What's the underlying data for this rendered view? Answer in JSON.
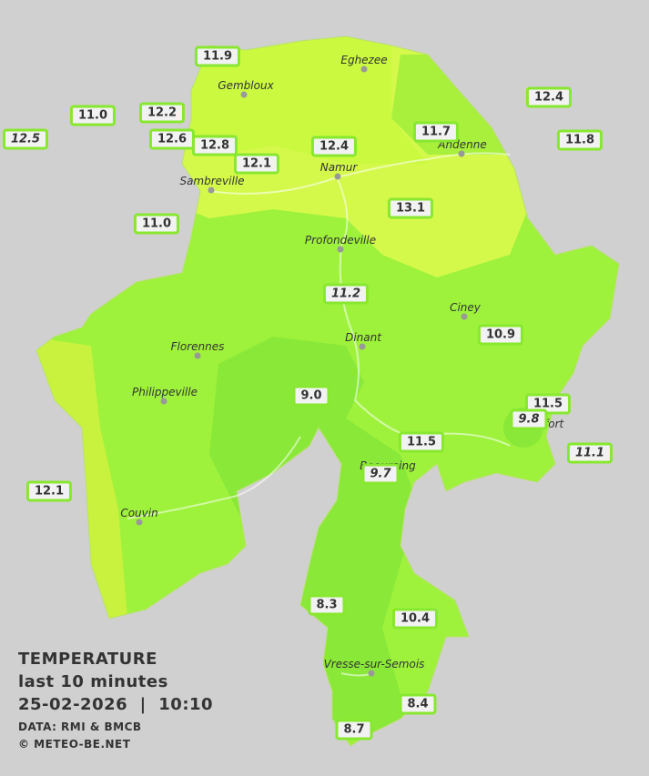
{
  "legend": {
    "title": "TEMPERATURE",
    "subtitle": "last 10 minutes",
    "datetime": "25-02-2026  |  10:10",
    "source": "DATA: RMI & BMCB",
    "credit": "© METEO-BE.NET"
  },
  "towns": [
    "Eghezee",
    "Gembloux",
    "Andenne",
    "Namur",
    "Sambreville",
    "Profondeville",
    "Ciney",
    "Dinant",
    "Florennes",
    "Philippeville",
    "Rochefort",
    "Beauraing",
    "Couvin",
    "Vresse-sur-Semois"
  ],
  "stations": [
    {
      "reading": "11.9",
      "italic": false
    },
    {
      "reading": "12.2",
      "italic": false
    },
    {
      "reading": "11.0",
      "italic": false
    },
    {
      "reading": "12.5",
      "italic": true
    },
    {
      "reading": "12.6",
      "italic": false
    },
    {
      "reading": "12.8",
      "italic": false
    },
    {
      "reading": "12.1",
      "italic": false
    },
    {
      "reading": "12.4",
      "italic": false
    },
    {
      "reading": "11.7",
      "italic": false
    },
    {
      "reading": "12.4",
      "italic": false
    },
    {
      "reading": "11.8",
      "italic": false
    },
    {
      "reading": "13.1",
      "italic": false
    },
    {
      "reading": "11.0",
      "italic": false
    },
    {
      "reading": "11.2",
      "italic": true
    },
    {
      "reading": "10.9",
      "italic": false
    },
    {
      "reading": "9.0",
      "italic": false
    },
    {
      "reading": "11.5",
      "italic": false
    },
    {
      "reading": "9.8",
      "italic": true
    },
    {
      "reading": "11.5",
      "italic": false
    },
    {
      "reading": "11.1",
      "italic": true
    },
    {
      "reading": "9.7",
      "italic": true
    },
    {
      "reading": "12.1",
      "italic": false
    },
    {
      "reading": "8.3",
      "italic": false
    },
    {
      "reading": "10.4",
      "italic": false
    },
    {
      "reading": "8.4",
      "italic": false
    },
    {
      "reading": "8.7",
      "italic": false
    }
  ]
}
